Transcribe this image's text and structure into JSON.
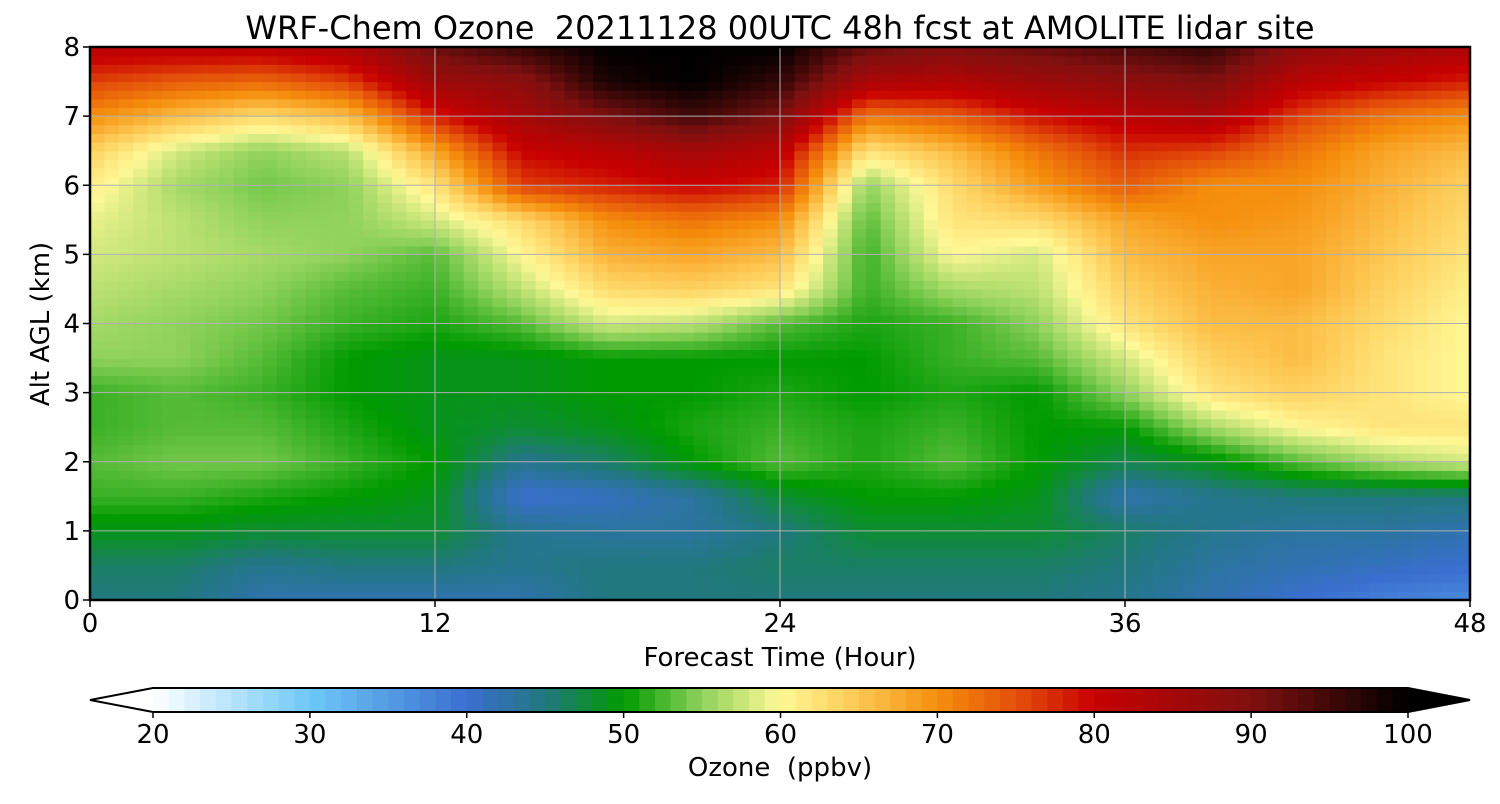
{
  "chart_data": {
    "type": "heatmap",
    "title": "WRF-Chem Ozone  20211128 00UTC 48h fcst at AMOLITE lidar site",
    "xlabel": "Forecast Time (Hour)",
    "ylabel": "Alt AGL (km)",
    "xlim": [
      0,
      48
    ],
    "ylim": [
      0,
      8
    ],
    "x_ticks": [
      0,
      12,
      24,
      36,
      48
    ],
    "y_ticks": [
      0,
      1,
      2,
      3,
      4,
      5,
      6,
      7,
      8
    ],
    "grid": true,
    "x": [
      0,
      3,
      6,
      9,
      12,
      15,
      18,
      21,
      24,
      27,
      30,
      33,
      36,
      39,
      42,
      45,
      48
    ],
    "y": [
      0,
      0.5,
      1,
      1.5,
      2,
      2.5,
      3,
      3.5,
      4,
      4.5,
      5,
      5.5,
      6,
      6.5,
      7,
      7.5,
      8
    ],
    "z": [
      [
        45,
        45,
        42,
        42,
        42,
        42,
        45,
        45,
        45,
        45,
        45,
        45,
        44,
        42,
        40,
        38,
        37
      ],
      [
        46,
        46,
        44,
        45,
        45,
        44,
        45,
        45,
        46,
        46,
        46,
        46,
        45,
        43,
        42,
        41,
        40
      ],
      [
        49,
        49,
        48,
        48,
        48,
        44,
        43,
        43,
        45,
        48,
        48,
        48,
        46,
        44,
        43,
        43,
        42
      ],
      [
        52,
        52,
        51,
        50,
        49,
        40,
        41,
        43,
        48,
        50,
        50,
        49,
        42,
        44,
        45,
        45,
        45
      ],
      [
        53,
        54,
        54,
        52,
        50,
        44,
        46,
        50,
        53,
        51,
        53,
        50,
        47,
        49,
        53,
        56,
        58
      ],
      [
        52,
        53,
        53,
        51,
        49,
        48,
        49,
        51,
        52,
        51,
        52,
        50,
        50,
        56,
        60,
        62,
        62
      ],
      [
        52,
        53,
        52,
        50,
        49,
        49,
        50,
        50,
        51,
        50,
        51,
        50,
        55,
        62,
        64,
        62,
        60
      ],
      [
        55,
        55,
        53,
        50,
        49,
        49,
        50,
        50,
        50,
        50,
        52,
        53,
        58,
        64,
        66,
        62,
        60
      ],
      [
        56,
        55,
        54,
        52,
        51,
        53,
        58,
        57,
        53,
        51,
        52,
        55,
        62,
        66,
        66,
        63,
        60
      ],
      [
        57,
        56,
        55,
        53,
        52,
        57,
        63,
        64,
        62,
        52,
        56,
        57,
        64,
        67,
        68,
        64,
        61
      ],
      [
        58,
        57,
        56,
        55,
        53,
        60,
        67,
        68,
        66,
        52,
        60,
        58,
        66,
        68,
        68,
        65,
        62
      ],
      [
        59,
        57,
        55,
        55,
        58,
        63,
        70,
        72,
        70,
        53,
        62,
        63,
        68,
        70,
        69,
        66,
        63
      ],
      [
        61,
        56,
        54,
        55,
        62,
        76,
        78,
        80,
        78,
        55,
        63,
        69,
        74,
        70,
        70,
        67,
        64
      ],
      [
        64,
        58,
        55,
        57,
        68,
        80,
        82,
        85,
        82,
        62,
        66,
        72,
        77,
        76,
        72,
        68,
        66
      ],
      [
        70,
        66,
        63,
        66,
        78,
        85,
        90,
        95,
        90,
        72,
        74,
        79,
        82,
        84,
        76,
        72,
        70
      ],
      [
        76,
        74,
        73,
        76,
        86,
        88,
        98,
        100,
        96,
        84,
        83,
        86,
        88,
        90,
        82,
        80,
        78
      ],
      [
        82,
        82,
        82,
        84,
        92,
        96,
        100,
        100,
        100,
        92,
        90,
        92,
        94,
        96,
        88,
        86,
        84
      ]
    ],
    "colorbar": {
      "label": "Ozone  (ppbv)",
      "min": 20,
      "max": 100,
      "ticks": [
        20,
        30,
        40,
        50,
        60,
        70,
        80,
        90,
        100
      ],
      "extend": "both",
      "colors": [
        {
          "v": 20,
          "c": "#ffffff"
        },
        {
          "v": 30,
          "c": "#6ec8f8"
        },
        {
          "v": 40,
          "c": "#3a6ed0"
        },
        {
          "v": 45,
          "c": "#21787e"
        },
        {
          "v": 50,
          "c": "#009a00"
        },
        {
          "v": 55,
          "c": "#90d25c"
        },
        {
          "v": 60,
          "c": "#fff896"
        },
        {
          "v": 65,
          "c": "#fdc752"
        },
        {
          "v": 70,
          "c": "#f58e0c"
        },
        {
          "v": 75,
          "c": "#e4500a"
        },
        {
          "v": 80,
          "c": "#c80000"
        },
        {
          "v": 90,
          "c": "#801010"
        },
        {
          "v": 100,
          "c": "#000000"
        }
      ]
    }
  }
}
